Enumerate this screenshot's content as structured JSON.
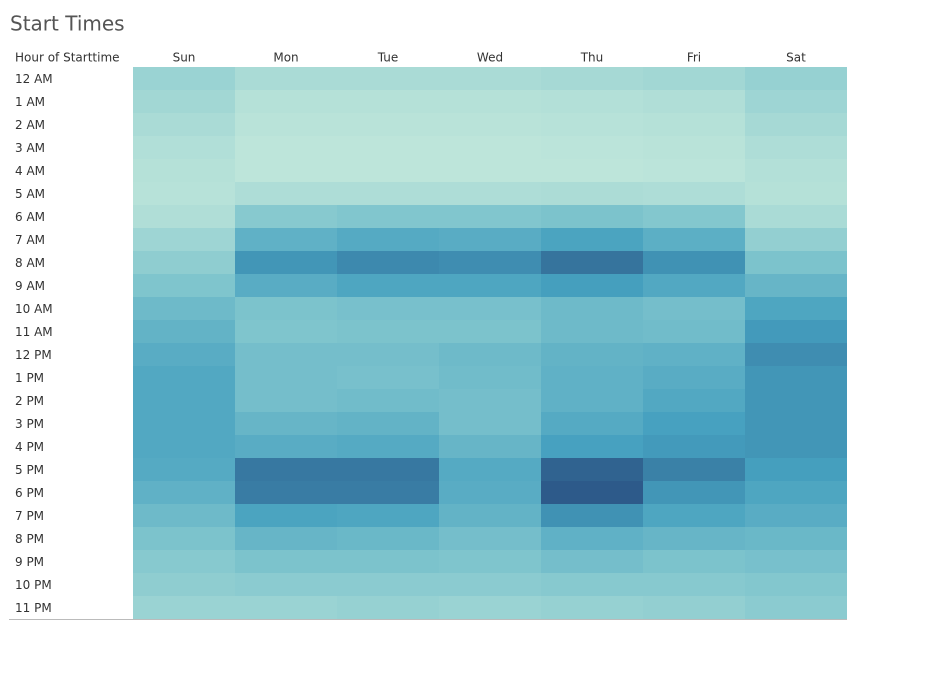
{
  "chart_data": {
    "type": "heatmap",
    "title": "Start Times",
    "y_label": "Hour of Starttime",
    "categories": [
      "Sun",
      "Mon",
      "Tue",
      "Wed",
      "Thu",
      "Fri",
      "Sat"
    ],
    "rows": [
      "12 AM",
      "1 AM",
      "2 AM",
      "3 AM",
      "4 AM",
      "5 AM",
      "6 AM",
      "7 AM",
      "8 AM",
      "9 AM",
      "10 AM",
      "11 AM",
      "12 PM",
      "1 PM",
      "2 PM",
      "3 PM",
      "4 PM",
      "5 PM",
      "6 PM",
      "7 PM",
      "8 PM",
      "9 PM",
      "10 PM",
      "11 PM"
    ],
    "values": [
      [
        20,
        12,
        12,
        12,
        14,
        16,
        22
      ],
      [
        16,
        6,
        6,
        6,
        7,
        9,
        18
      ],
      [
        12,
        4,
        4,
        4,
        5,
        6,
        14
      ],
      [
        8,
        2,
        2,
        2,
        3,
        4,
        10
      ],
      [
        6,
        2,
        2,
        2,
        2,
        3,
        7
      ],
      [
        5,
        10,
        10,
        10,
        11,
        10,
        6
      ],
      [
        9,
        30,
        33,
        33,
        36,
        32,
        12
      ],
      [
        18,
        52,
        58,
        56,
        64,
        54,
        24
      ],
      [
        26,
        72,
        78,
        76,
        88,
        74,
        36
      ],
      [
        34,
        56,
        62,
        62,
        68,
        60,
        48
      ],
      [
        44,
        36,
        38,
        38,
        44,
        40,
        62
      ],
      [
        50,
        34,
        36,
        36,
        44,
        42,
        70
      ],
      [
        56,
        40,
        40,
        44,
        50,
        52,
        76
      ],
      [
        60,
        40,
        38,
        42,
        52,
        56,
        72
      ],
      [
        60,
        40,
        42,
        40,
        52,
        60,
        72
      ],
      [
        60,
        48,
        50,
        40,
        58,
        66,
        72
      ],
      [
        60,
        56,
        58,
        48,
        66,
        70,
        72
      ],
      [
        58,
        86,
        86,
        58,
        96,
        82,
        68
      ],
      [
        52,
        84,
        84,
        56,
        100,
        72,
        62
      ],
      [
        44,
        64,
        62,
        50,
        74,
        62,
        56
      ],
      [
        36,
        48,
        46,
        40,
        52,
        48,
        46
      ],
      [
        30,
        36,
        36,
        34,
        40,
        36,
        38
      ],
      [
        26,
        28,
        28,
        28,
        30,
        30,
        32
      ],
      [
        20,
        20,
        22,
        20,
        22,
        24,
        28
      ]
    ],
    "colors": [
      "#bde5da",
      "#7ec4cd",
      "#45a0bf",
      "#2d5a8a"
    ]
  }
}
